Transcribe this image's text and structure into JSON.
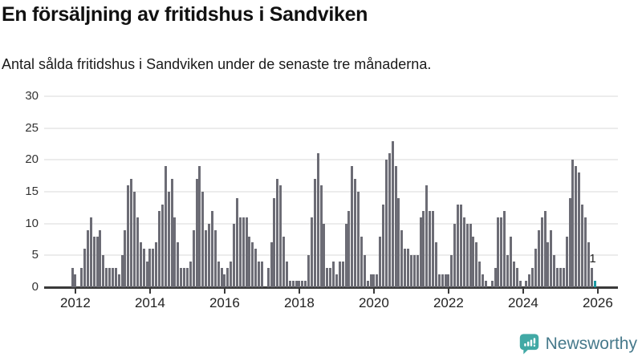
{
  "header": {
    "title": "En försäljning av fritidshus i Sandviken",
    "subtitle": "Antal sålda fritidshus i Sandviken under de senaste tre månaderna."
  },
  "chart_data": {
    "type": "bar",
    "title": "En försäljning av fritidshus i Sandviken",
    "xlabel": "",
    "ylabel": "",
    "start_month": "2011-12",
    "end_month": "2025-12",
    "frequency": "monthly",
    "values": [
      3,
      2,
      0,
      3,
      6,
      9,
      11,
      8,
      8,
      9,
      5,
      3,
      3,
      3,
      3,
      2,
      5,
      9,
      16,
      17,
      15,
      11,
      7,
      6,
      4,
      6,
      6,
      7,
      12,
      13,
      19,
      15,
      17,
      11,
      7,
      3,
      3,
      3,
      4,
      9,
      17,
      19,
      15,
      9,
      10,
      12,
      9,
      4,
      3,
      2,
      3,
      4,
      10,
      14,
      11,
      11,
      11,
      8,
      7,
      6,
      4,
      4,
      0,
      3,
      7,
      14,
      17,
      16,
      8,
      4,
      1,
      1,
      1,
      1,
      1,
      1,
      5,
      11,
      17,
      21,
      16,
      10,
      3,
      3,
      4,
      2,
      4,
      4,
      10,
      12,
      19,
      17,
      15,
      8,
      5,
      1,
      2,
      2,
      2,
      8,
      13,
      20,
      21,
      23,
      19,
      14,
      9,
      6,
      6,
      5,
      5,
      5,
      11,
      12,
      16,
      12,
      12,
      7,
      2,
      2,
      2,
      2,
      5,
      10,
      13,
      13,
      11,
      10,
      10,
      8,
      7,
      4,
      2,
      1,
      0,
      1,
      3,
      11,
      11,
      12,
      5,
      8,
      4,
      3,
      1,
      0,
      1,
      2,
      3,
      6,
      9,
      11,
      12,
      7,
      9,
      5,
      3,
      3,
      3,
      8,
      14,
      20,
      19,
      18,
      13,
      11,
      7,
      3,
      1
    ],
    "highlight": {
      "index": 168,
      "value": 1,
      "label": "1"
    },
    "y_ticks": [
      0,
      5,
      10,
      15,
      20,
      25,
      30
    ],
    "x_ticks": [
      2012,
      2014,
      2016,
      2018,
      2020,
      2022,
      2024,
      2026
    ],
    "ylim": [
      0,
      30
    ],
    "grid": "horizontal",
    "legend": "none",
    "colors": {
      "bar": "#6C6C75",
      "highlight": "#1B9AA2",
      "grid": "#ECECEC",
      "axis": "#3A3A3A",
      "tick_text": "#333333"
    }
  },
  "footer": {
    "brand": "Newsworthy",
    "brand_color": "#46798B",
    "icon_color": "#41A9A5"
  }
}
